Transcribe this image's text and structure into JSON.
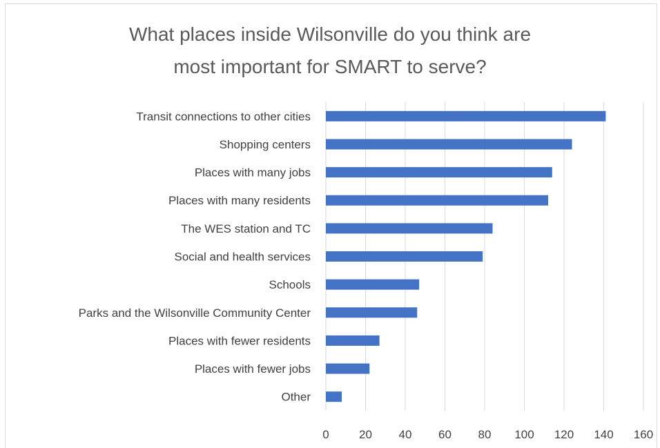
{
  "chart_data": {
    "type": "bar",
    "orientation": "horizontal",
    "title_lines": [
      "What places inside Wilsonville do you think are",
      "most important for SMART to serve?"
    ],
    "categories": [
      "Transit connections to other cities",
      "Shopping centers",
      "Places with many jobs",
      "Places with many residents",
      "The WES station and TC",
      "Social and health services",
      "Schools",
      "Parks and the Wilsonville Community Center",
      "Places with fewer residents",
      "Places with fewer jobs",
      "Other"
    ],
    "values": [
      141,
      124,
      114,
      112,
      84,
      79,
      47,
      46,
      27,
      22,
      8
    ],
    "xlim": [
      0,
      160
    ],
    "xticks": [
      0,
      20,
      40,
      60,
      80,
      100,
      120,
      140,
      160
    ],
    "xtick_labels": [
      "0",
      "20",
      "40",
      "60",
      "80",
      "100",
      "120",
      "140",
      "160"
    ],
    "grid": "vertical",
    "legend": "none",
    "bar_color": "#4472c4",
    "grid_color": "#d9d9d9"
  }
}
